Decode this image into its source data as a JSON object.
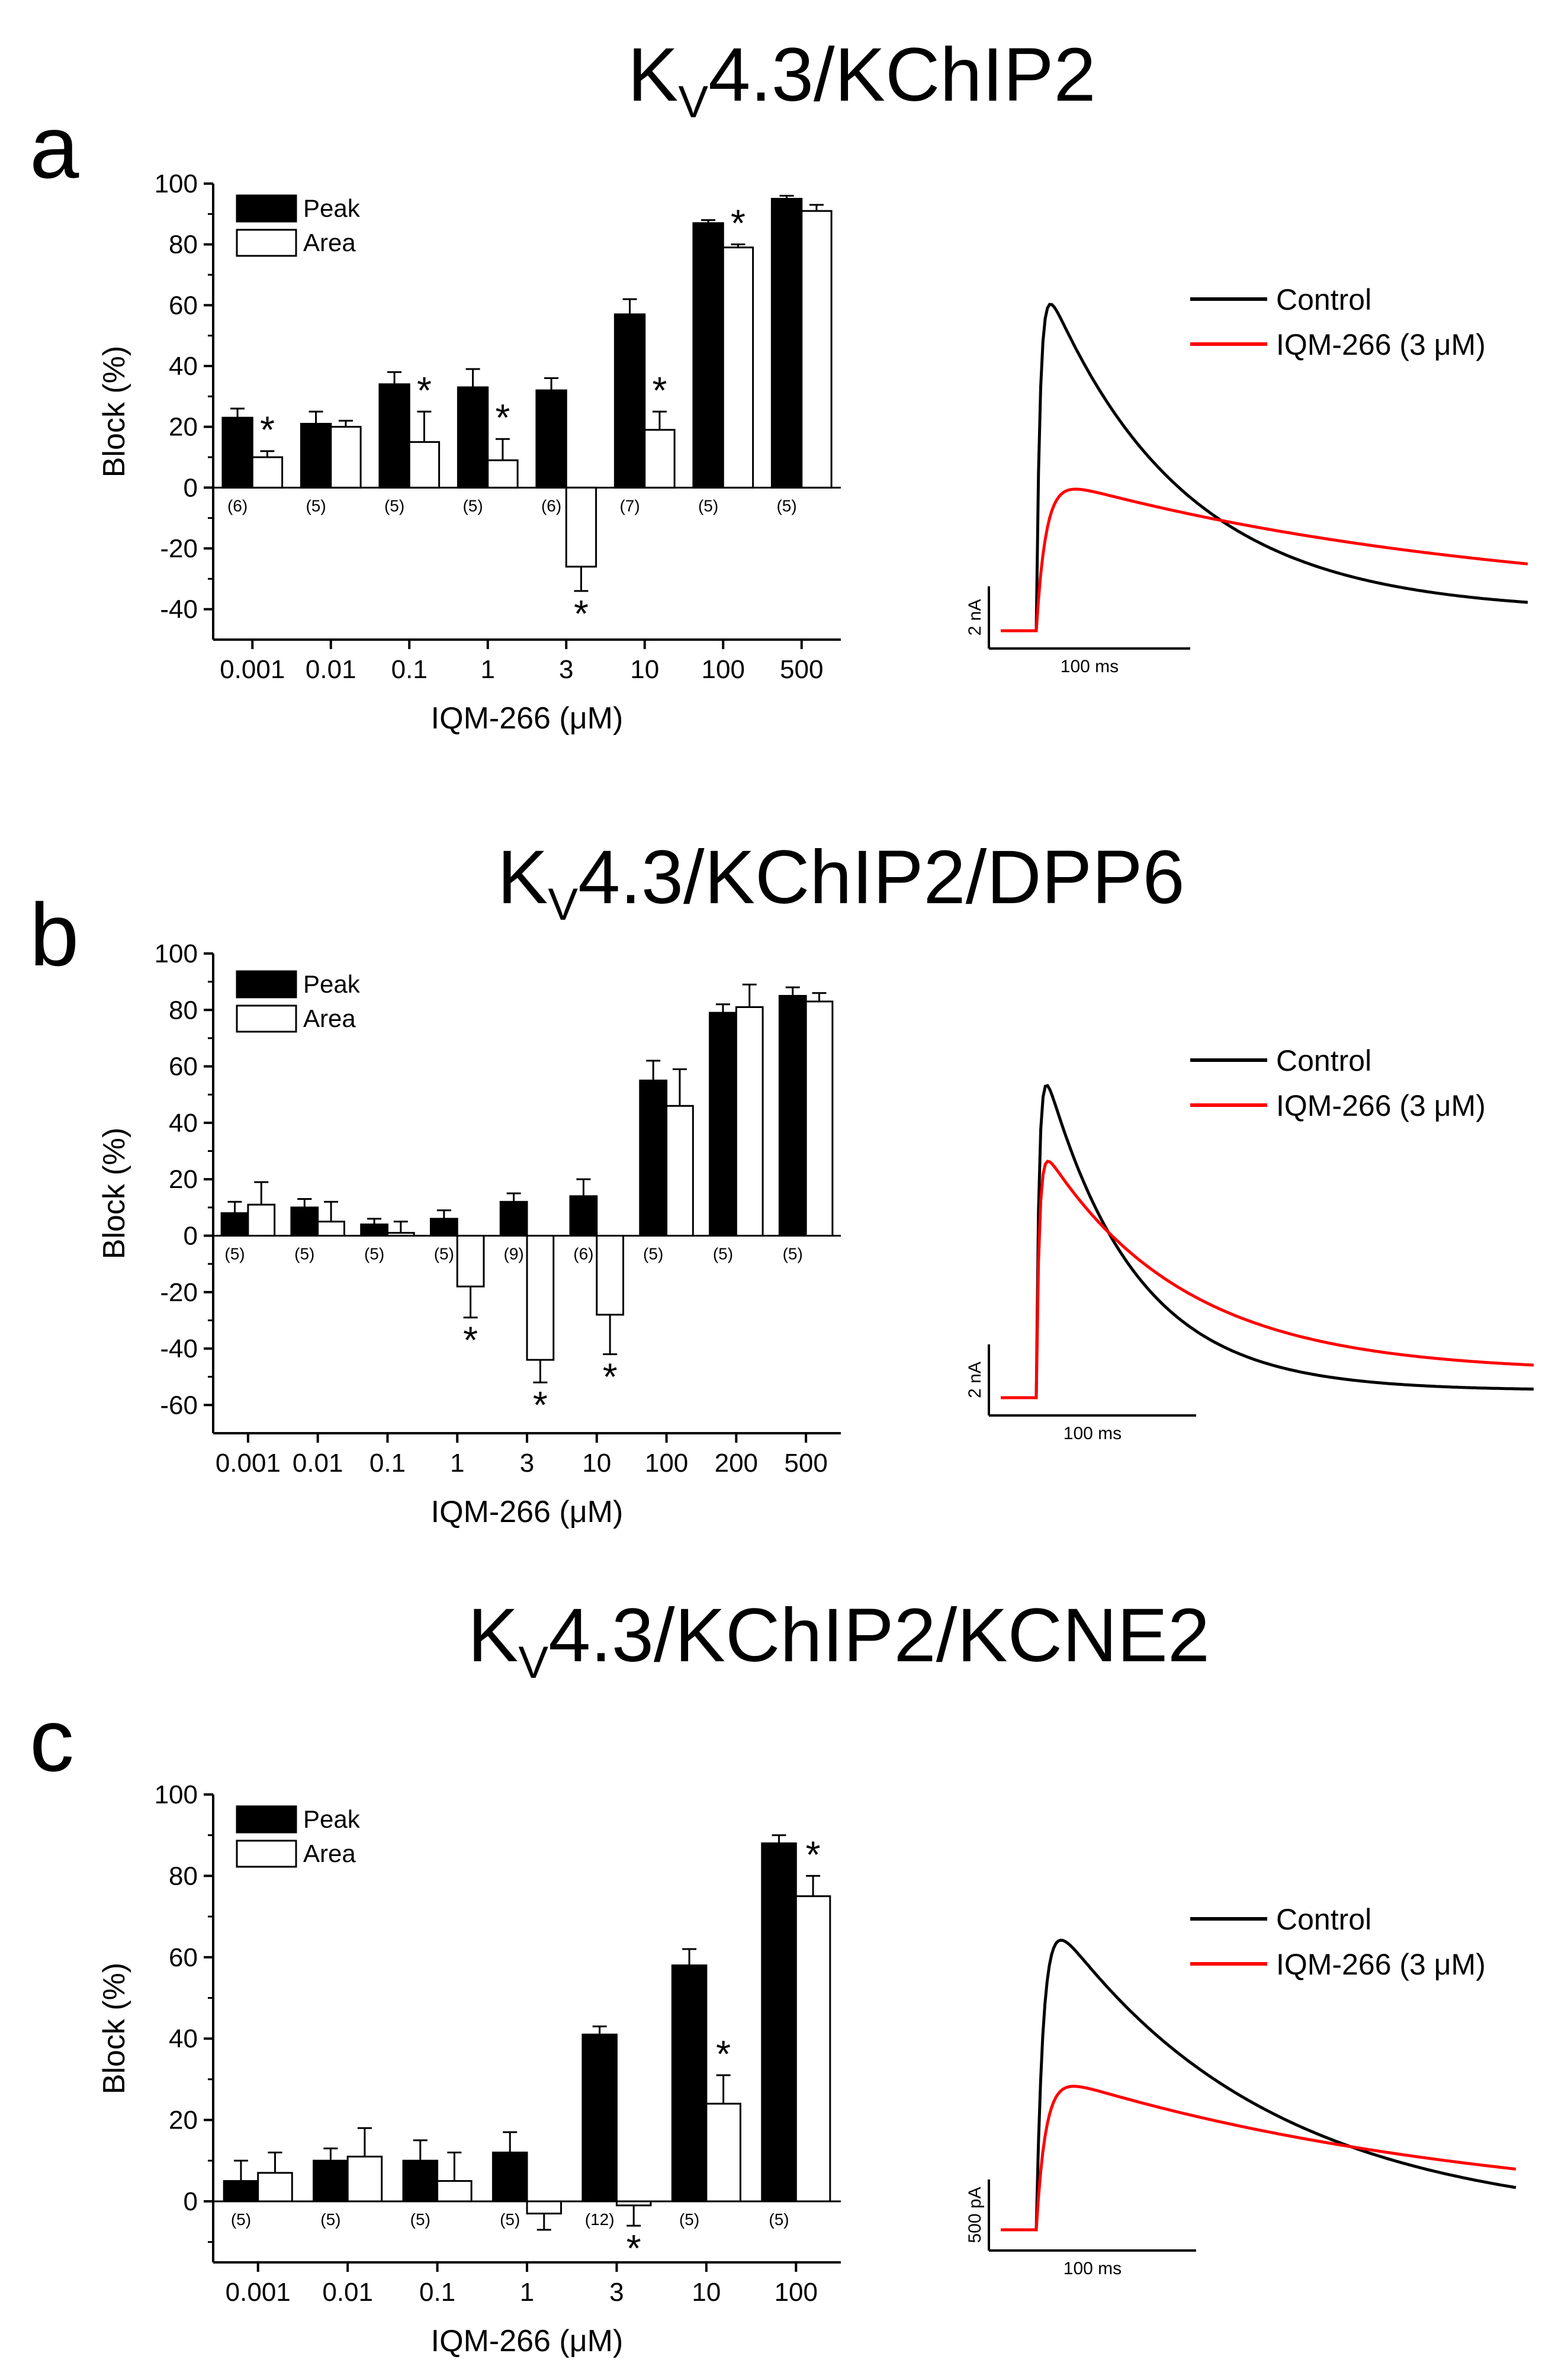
{
  "figure": {
    "panels": [
      {
        "letter": "a",
        "title_main": "K",
        "title_sub": "V",
        "title_rest": "4.3/KChIP2",
        "chart_data": {
          "type": "bar",
          "xlabel": "IQM-266 (μM)",
          "ylabel": "Block (%)",
          "ylim": [
            -50,
            100
          ],
          "yticks": [
            -40,
            -20,
            0,
            20,
            40,
            60,
            80,
            100
          ],
          "categories": [
            "0.001",
            "0.01",
            "0.1",
            "1",
            "3",
            "10",
            "100",
            "500"
          ],
          "series": [
            {
              "name": "Peak",
              "color": "#000000",
              "values": [
                23,
                21,
                34,
                33,
                32,
                57,
                87,
                95
              ],
              "errors": [
                3,
                4,
                4,
                6,
                4,
                5,
                1,
                1
              ]
            },
            {
              "name": "Area",
              "color": "#ffffff",
              "values": [
                10,
                20,
                15,
                9,
                -26,
                19,
                79,
                91
              ],
              "errors": [
                2,
                2,
                10,
                7,
                8,
                6,
                1,
                2
              ]
            }
          ],
          "n": [
            "(6)",
            "(5)",
            "(5)",
            "(5)",
            "(6)",
            "(7)",
            "(5)",
            "(5)"
          ],
          "significant_area": [
            true,
            false,
            true,
            true,
            true,
            true,
            true,
            false
          ],
          "legend": "top-left"
        },
        "trace": {
          "legend": [
            "Control",
            "IQM-266 (3 μM)"
          ],
          "colors": [
            "#000000",
            "#ff0000"
          ],
          "scale_y": "2 nA",
          "scale_x": "100 ms"
        }
      },
      {
        "letter": "b",
        "title_main": "K",
        "title_sub": "V",
        "title_rest": "4.3/KChIP2/DPP6",
        "chart_data": {
          "type": "bar",
          "xlabel": "IQM-266 (μM)",
          "ylabel": "Block (%)",
          "ylim": [
            -70,
            100
          ],
          "yticks": [
            -60,
            -40,
            -20,
            0,
            20,
            40,
            60,
            80,
            100
          ],
          "categories": [
            "0.001",
            "0.01",
            "0.1",
            "1",
            "3",
            "10",
            "100",
            "200",
            "500"
          ],
          "series": [
            {
              "name": "Peak",
              "color": "#000000",
              "values": [
                8,
                10,
                4,
                6,
                12,
                14,
                55,
                79,
                85
              ],
              "errors": [
                4,
                3,
                2,
                3,
                3,
                6,
                7,
                3,
                3
              ]
            },
            {
              "name": "Area",
              "color": "#ffffff",
              "values": [
                11,
                5,
                1,
                -18,
                -44,
                -28,
                46,
                81,
                83
              ],
              "errors": [
                8,
                7,
                4,
                11,
                8,
                14,
                13,
                8,
                3
              ]
            }
          ],
          "n": [
            "(5)",
            "(5)",
            "(5)",
            "(5)",
            "(9)",
            "(6)",
            "(5)",
            "(5)",
            "(5)"
          ],
          "significant_area": [
            false,
            false,
            false,
            true,
            true,
            true,
            false,
            false,
            false
          ],
          "legend": "top-left"
        },
        "trace": {
          "legend": [
            "Control",
            "IQM-266 (3 μM)"
          ],
          "colors": [
            "#000000",
            "#ff0000"
          ],
          "scale_y": "2 nA",
          "scale_x": "100 ms"
        }
      },
      {
        "letter": "c",
        "title_main": "K",
        "title_sub": "V",
        "title_rest": "4.3/KChIP2/KCNE2",
        "chart_data": {
          "type": "bar",
          "xlabel": "IQM-266 (μM)",
          "ylabel": "Block (%)",
          "ylim": [
            -15,
            100
          ],
          "yticks": [
            0,
            20,
            40,
            60,
            80,
            100
          ],
          "categories": [
            "0.001",
            "0.01",
            "0.1",
            "1",
            "3",
            "10",
            "100"
          ],
          "series": [
            {
              "name": "Peak",
              "color": "#000000",
              "values": [
                5,
                10,
                10,
                12,
                41,
                58,
                88
              ],
              "errors": [
                5,
                3,
                5,
                5,
                2,
                4,
                2
              ]
            },
            {
              "name": "Area",
              "color": "#ffffff",
              "values": [
                7,
                11,
                5,
                -3,
                -1,
                24,
                75
              ],
              "errors": [
                5,
                7,
                7,
                4,
                5,
                7,
                5
              ]
            }
          ],
          "n": [
            "(5)",
            "(5)",
            "(5)",
            "(5)",
            "(12)",
            "(5)",
            "(5)"
          ],
          "significant_area": [
            false,
            false,
            false,
            false,
            true,
            true,
            true
          ],
          "legend": "top-left"
        },
        "trace": {
          "legend": [
            "Control",
            "IQM-266 (3 μM)"
          ],
          "colors": [
            "#000000",
            "#ff0000"
          ],
          "scale_y": "500 pA",
          "scale_x": "100 ms"
        }
      }
    ]
  }
}
